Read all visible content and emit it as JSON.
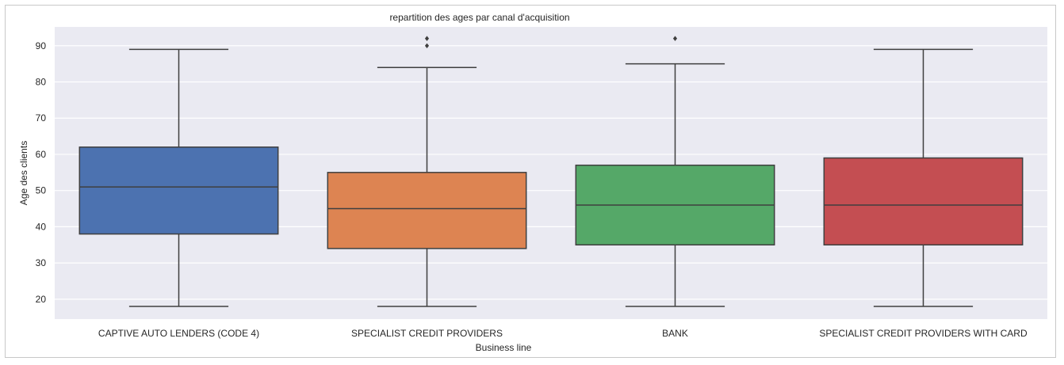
{
  "chart_data": {
    "type": "box",
    "title": "repartition des ages par canal d'acquisition",
    "xlabel": "Business line",
    "ylabel": "Age des clients",
    "ylim": [
      14.5,
      95.2
    ],
    "yticks": [
      20,
      30,
      40,
      50,
      60,
      70,
      80,
      90
    ],
    "grid": true,
    "background": "#eaeaf2",
    "categories": [
      "CAPTIVE AUTO LENDERS (CODE 4)",
      "SPECIALIST CREDIT PROVIDERS",
      "BANK",
      "SPECIALIST CREDIT PROVIDERS WITH CARD"
    ],
    "boxes": [
      {
        "category": "CAPTIVE AUTO LENDERS (CODE 4)",
        "whisker_low": 18,
        "q1": 38,
        "median": 51,
        "q3": 62,
        "whisker_high": 89,
        "outliers": [],
        "color": "#4c72b0"
      },
      {
        "category": "SPECIALIST CREDIT PROVIDERS",
        "whisker_low": 18,
        "q1": 34,
        "median": 45,
        "q3": 55,
        "whisker_high": 84,
        "outliers": [
          90,
          92
        ],
        "color": "#dd8452"
      },
      {
        "category": "BANK",
        "whisker_low": 18,
        "q1": 35,
        "median": 46,
        "q3": 57,
        "whisker_high": 85,
        "outliers": [
          92
        ],
        "color": "#55a868"
      },
      {
        "category": "SPECIALIST CREDIT PROVIDERS WITH CARD",
        "whisker_low": 18,
        "q1": 35,
        "median": 46,
        "q3": 59,
        "whisker_high": 89,
        "outliers": [],
        "color": "#c44e52"
      }
    ]
  }
}
